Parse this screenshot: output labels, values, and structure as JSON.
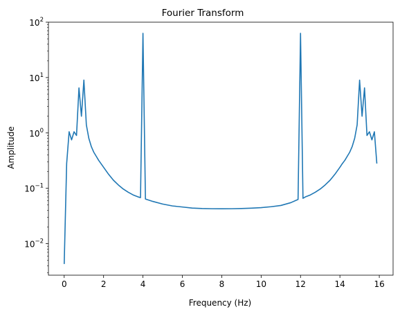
{
  "chart_data": {
    "type": "line",
    "title": "Fourier Transform",
    "xlabel": "Frequency (Hz)",
    "ylabel": "Amplitude",
    "xlim": [
      -0.8,
      16.7
    ],
    "ylim": [
      0.0027,
      100
    ],
    "yscale": "log",
    "grid": false,
    "xticks": [
      0,
      2,
      4,
      6,
      8,
      10,
      12,
      14,
      16
    ],
    "yticks": [
      {
        "value": 0.01,
        "base": "10",
        "exp": "−2"
      },
      {
        "value": 0.1,
        "base": "10",
        "exp": "−1"
      },
      {
        "value": 1,
        "base": "10",
        "exp": "0"
      },
      {
        "value": 10,
        "base": "10",
        "exp": "1"
      },
      {
        "value": 100,
        "base": "10",
        "exp": "2"
      }
    ],
    "line_color": "#1f77b4",
    "series": [
      {
        "x": [
          0,
          0.125,
          0.25,
          0.375,
          0.5,
          0.625,
          0.75,
          0.875,
          1.0,
          1.125,
          1.25,
          1.375,
          1.5,
          1.625,
          1.75,
          2.0,
          2.25,
          2.5,
          2.75,
          3.0,
          3.25,
          3.5,
          3.75,
          3.875,
          4.0,
          4.125,
          4.5,
          5.0,
          5.5,
          6.0,
          6.5,
          7.0,
          7.5,
          8.0,
          8.5,
          9.0,
          9.5,
          10.0,
          10.5,
          11.0,
          11.5,
          11.875,
          12.0,
          12.125,
          12.25,
          12.5,
          12.75,
          13.0,
          13.25,
          13.5,
          13.75,
          14.0,
          14.125,
          14.25,
          14.375,
          14.5,
          14.625,
          14.75,
          14.875,
          15.0,
          15.125,
          15.25,
          15.375,
          15.5,
          15.625,
          15.75,
          15.875
        ],
        "y": [
          0.0043,
          0.28,
          1.05,
          0.75,
          1.05,
          0.9,
          6.5,
          2.0,
          9.0,
          1.4,
          0.8,
          0.57,
          0.45,
          0.38,
          0.32,
          0.24,
          0.18,
          0.14,
          0.115,
          0.097,
          0.085,
          0.076,
          0.07,
          0.068,
          63,
          0.064,
          0.058,
          0.052,
          0.048,
          0.046,
          0.044,
          0.0432,
          0.0428,
          0.0427,
          0.0428,
          0.0432,
          0.0438,
          0.0448,
          0.0465,
          0.049,
          0.055,
          0.063,
          63,
          0.066,
          0.07,
          0.076,
          0.085,
          0.097,
          0.115,
          0.14,
          0.18,
          0.24,
          0.28,
          0.32,
          0.38,
          0.45,
          0.57,
          0.8,
          1.4,
          9.0,
          2.0,
          6.5,
          0.9,
          1.05,
          0.75,
          1.05,
          0.28
        ]
      }
    ]
  }
}
